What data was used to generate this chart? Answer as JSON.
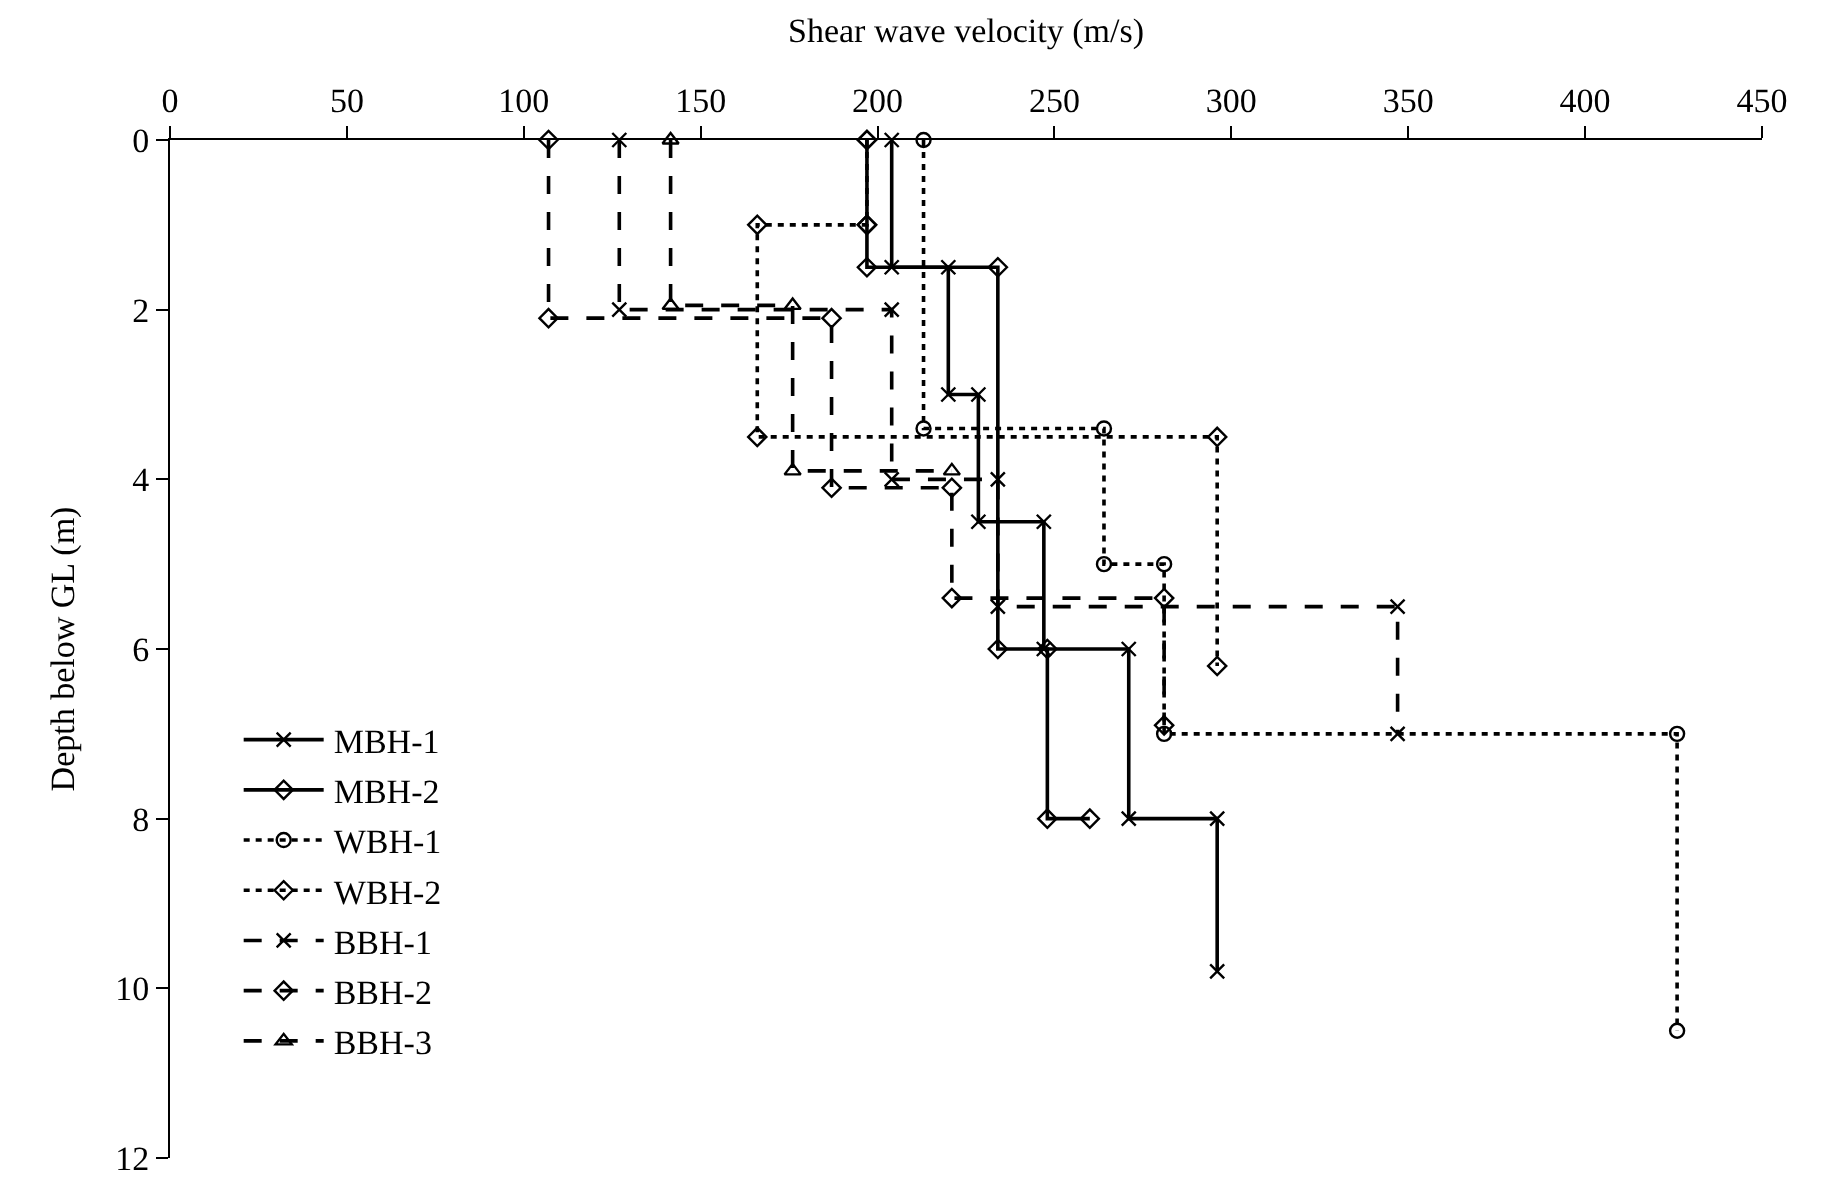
{
  "chart_data": {
    "type": "line",
    "xlabel": "Shear wave velocity (m/s)",
    "ylabel": "Depth below GL (m)",
    "xlim": [
      0,
      450
    ],
    "xticks": [
      0,
      50,
      100,
      150,
      200,
      250,
      300,
      350,
      400,
      450
    ],
    "ylim": [
      12,
      0
    ],
    "yticks": [
      0,
      2,
      4,
      6,
      8,
      10,
      12
    ],
    "legend": "bottom left",
    "series": [
      {
        "name": "MBH-1",
        "color": "#000000",
        "marker": "cross",
        "line_style": "solid",
        "x": [
          204,
          204,
          220,
          220,
          228.5,
          228.5,
          247,
          247,
          271,
          271,
          296,
          296
        ],
        "values": [
          0,
          1.5,
          1.5,
          3,
          3,
          4.5,
          4.5,
          6,
          6,
          8,
          8,
          9.8
        ]
      },
      {
        "name": "MBH-2",
        "color": "#000000",
        "marker": "diamond",
        "line_style": "solid",
        "x": [
          197,
          197,
          197,
          234,
          234,
          248,
          248,
          260
        ],
        "values": [
          0,
          1,
          1.5,
          1.5,
          6,
          6,
          8,
          8
        ]
      },
      {
        "name": "WBH-1",
        "color": "#000000",
        "marker": "circle",
        "line_style": "dotted",
        "x": [
          213,
          213,
          264,
          264,
          281,
          281,
          426,
          426
        ],
        "values": [
          0,
          3.4,
          3.4,
          5,
          5,
          7,
          7,
          10.5
        ]
      },
      {
        "name": "WBH-2",
        "color": "#000000",
        "marker": "diamond",
        "line_style": "dotted",
        "x": [
          197,
          197,
          166,
          166,
          296,
          296
        ],
        "values": [
          0,
          1,
          1,
          3.5,
          3.5,
          6.2
        ]
      },
      {
        "name": "BBH-1",
        "color": "#000000",
        "marker": "cross",
        "line_style": "dashed",
        "x": [
          127,
          127,
          204,
          204,
          234,
          234,
          347,
          347
        ],
        "values": [
          0,
          2,
          2,
          4,
          4,
          5.5,
          5.5,
          7
        ]
      },
      {
        "name": "BBH-2",
        "color": "#000000",
        "marker": "diamond",
        "line_style": "dashed",
        "x": [
          107,
          107,
          187,
          187,
          221,
          221,
          281,
          281
        ],
        "values": [
          0,
          2.1,
          2.1,
          4.1,
          4.1,
          5.4,
          5.4,
          6.9
        ]
      },
      {
        "name": "BBH-3",
        "color": "#000000",
        "marker": "triangle",
        "line_style": "dashed",
        "x": [
          141.5,
          141.5,
          176,
          176,
          221
        ],
        "values": [
          0,
          1.95,
          1.95,
          3.9,
          3.9
        ]
      }
    ]
  }
}
